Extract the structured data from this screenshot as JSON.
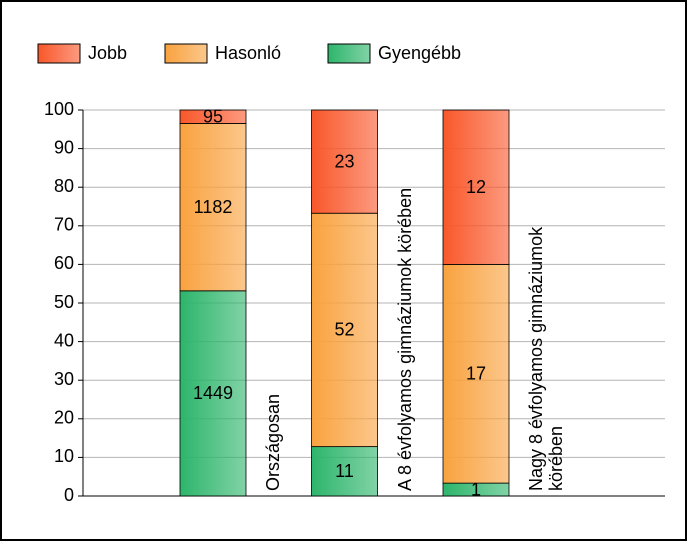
{
  "chart_data": {
    "type": "bar",
    "stacking": "percent",
    "categories": [
      "Országosan",
      "A 8 évfolyamos gimnáziumok körében",
      "Nagy 8 évfolyamos gimnáziumok körében"
    ],
    "series": [
      {
        "name": "Gyengébb",
        "color": "#2db56b",
        "values": [
          1449,
          11,
          1
        ]
      },
      {
        "name": "Hasonló",
        "color": "#f9a23f",
        "values": [
          1182,
          52,
          17
        ]
      },
      {
        "name": "Jobb",
        "color": "#f9572a",
        "values": [
          95,
          23,
          12
        ]
      }
    ],
    "legend_order": [
      2,
      1,
      0
    ],
    "ylim": [
      0,
      100
    ],
    "yticks": [
      0,
      10,
      20,
      30,
      40,
      50,
      60,
      70,
      80,
      90,
      100
    ],
    "grid": true
  }
}
